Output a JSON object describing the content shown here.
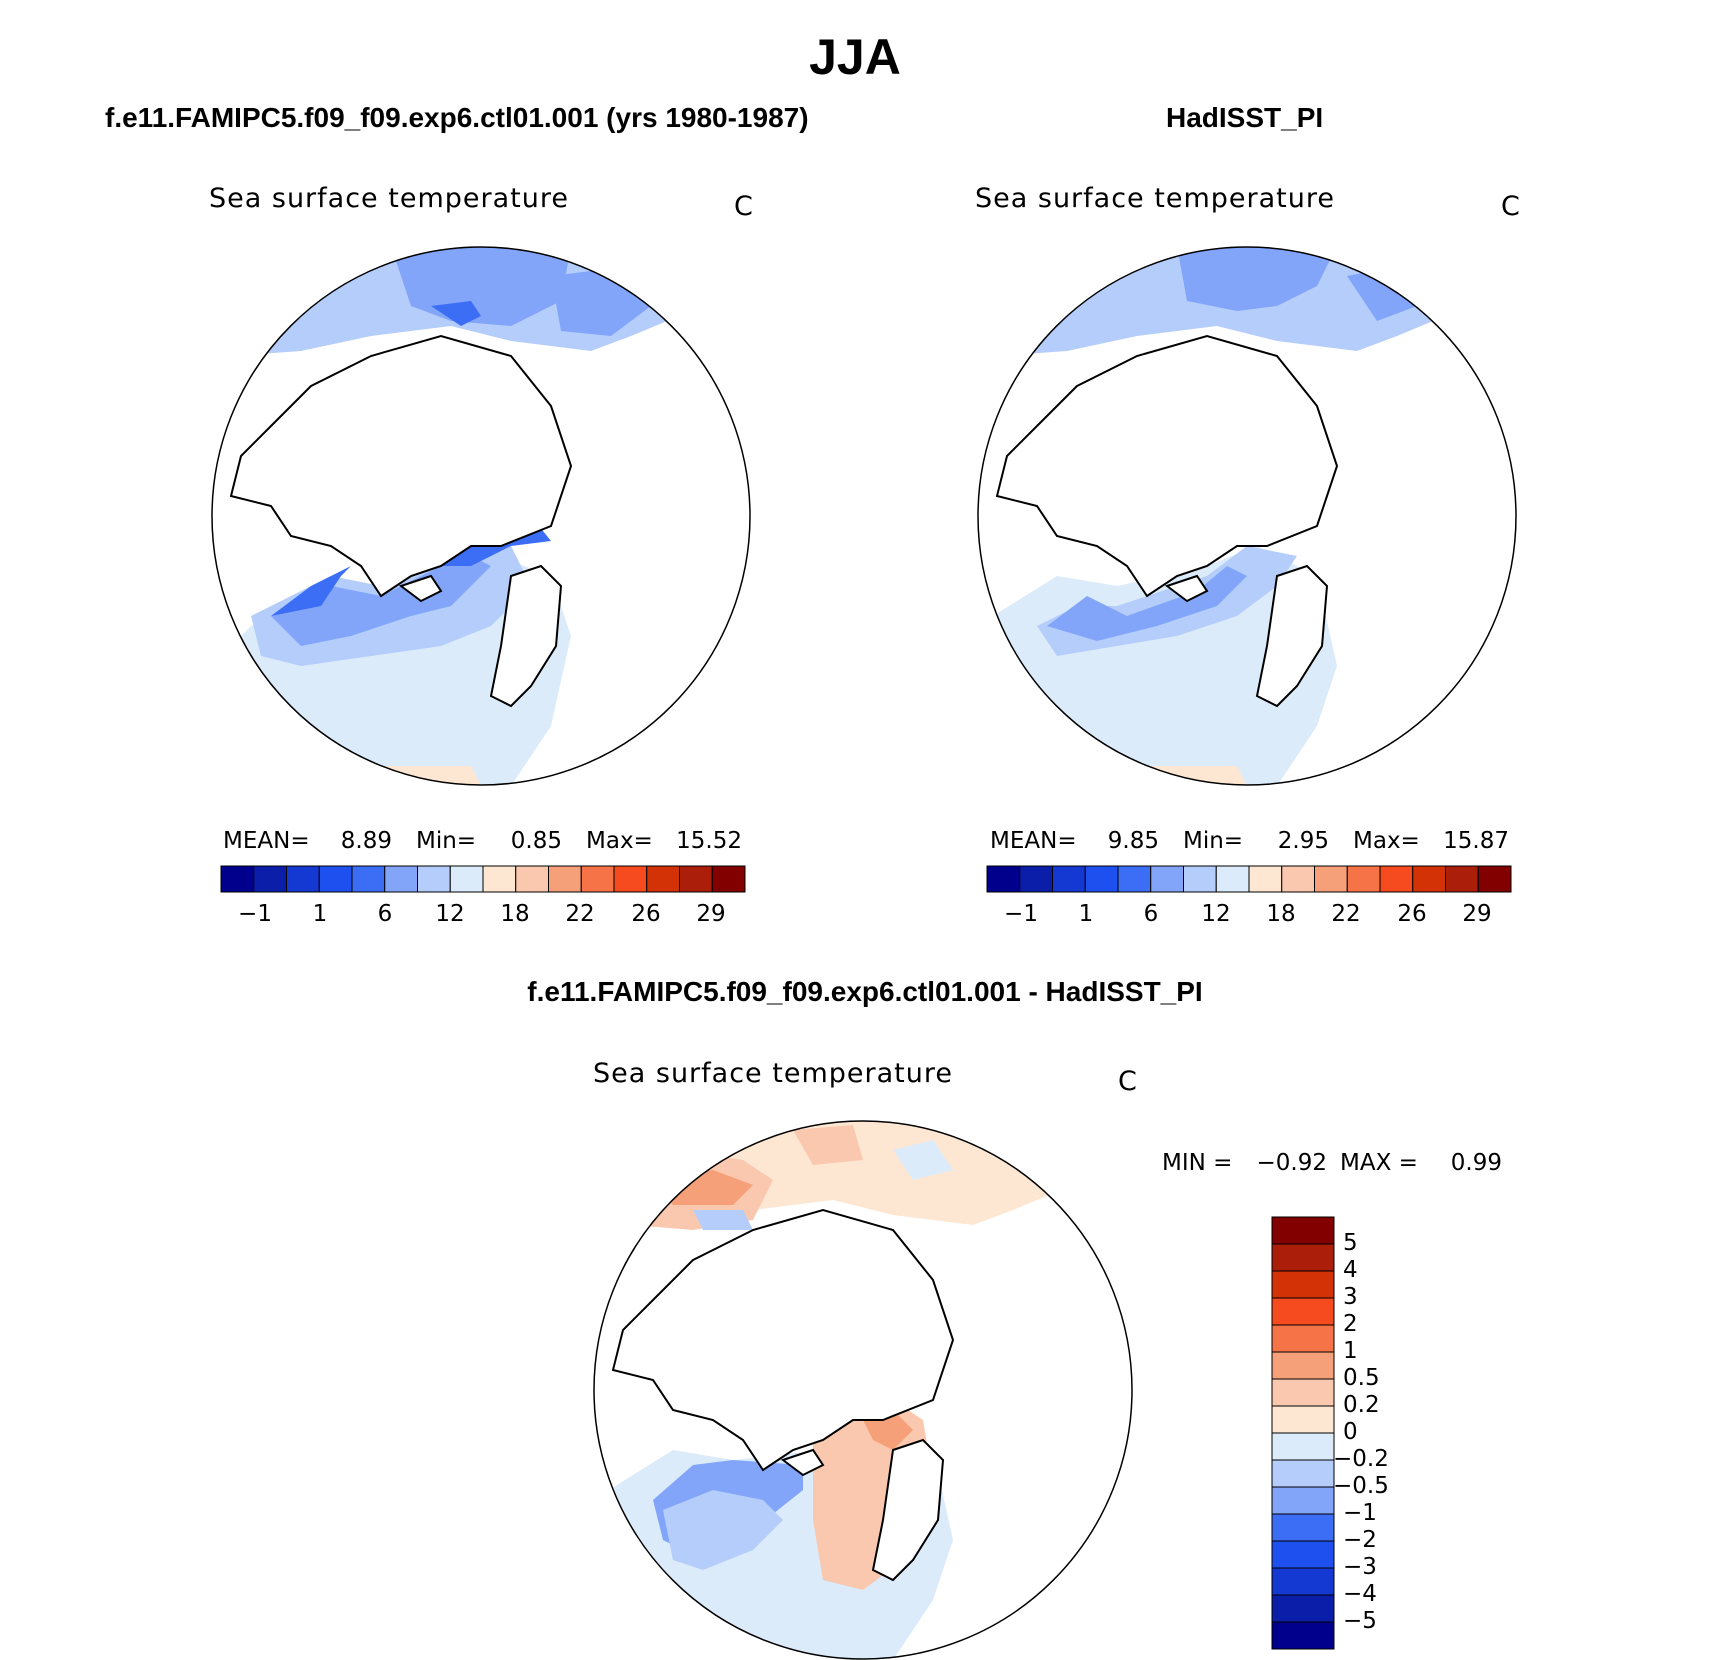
{
  "title": "JJA",
  "colors": {
    "scale": [
      "#00008c",
      "#0a1eaa",
      "#1438d2",
      "#1e50f0",
      "#3c6ef5",
      "#82a5fa",
      "#b4cdfa",
      "#dcebfa",
      "#fde6d2",
      "#fac8af",
      "#f5a078",
      "#f57346",
      "#f54b1e",
      "#d23205",
      "#aa1e0a",
      "#820000"
    ],
    "diff_scale": [
      "#00008c",
      "#0a1eaa",
      "#1438d2",
      "#1e50f0",
      "#3c6ef5",
      "#82a5fa",
      "#b4cdfa",
      "#dcebfa",
      "#fde6d2",
      "#fac8af",
      "#f5a078",
      "#f57346",
      "#f54b1e",
      "#d23205",
      "#aa1e0a",
      "#820000"
    ]
  },
  "panels": [
    {
      "title": "f.e11.FAMIPC5.f09_f09.exp6.ctl01.001 (yrs 1980-1987)",
      "field": "Sea surface temperature",
      "unit": "C",
      "stats": {
        "mean_label": "MEAN=",
        "mean": "8.89",
        "min_label": "Min=",
        "min": "0.85",
        "max_label": "Max=",
        "max": "15.52"
      },
      "ticks": [
        "−1",
        "1",
        "6",
        "12",
        "18",
        "22",
        "26",
        "29"
      ]
    },
    {
      "title": "HadISST_PI",
      "field": "Sea surface temperature",
      "unit": "C",
      "stats": {
        "mean_label": "MEAN=",
        "mean": "9.85",
        "min_label": "Min=",
        "min": "2.95",
        "max_label": "Max=",
        "max": "15.87"
      },
      "ticks": [
        "−1",
        "1",
        "6",
        "12",
        "18",
        "22",
        "26",
        "29"
      ]
    }
  ],
  "diff": {
    "title": "f.e11.FAMIPC5.f09_f09.exp6.ctl01.001 - HadISST_PI",
    "field": "Sea surface temperature",
    "unit": "C",
    "min_label": "MIN =",
    "min": "−0.92",
    "max_label": "MAX =",
    "max": "0.99",
    "ticks": [
      "5",
      "4",
      "3",
      "2",
      "1",
      "0.5",
      "0.2",
      "0",
      "−0.2",
      "−0.5",
      "−1",
      "−2",
      "−3",
      "−4",
      "−5"
    ]
  }
}
